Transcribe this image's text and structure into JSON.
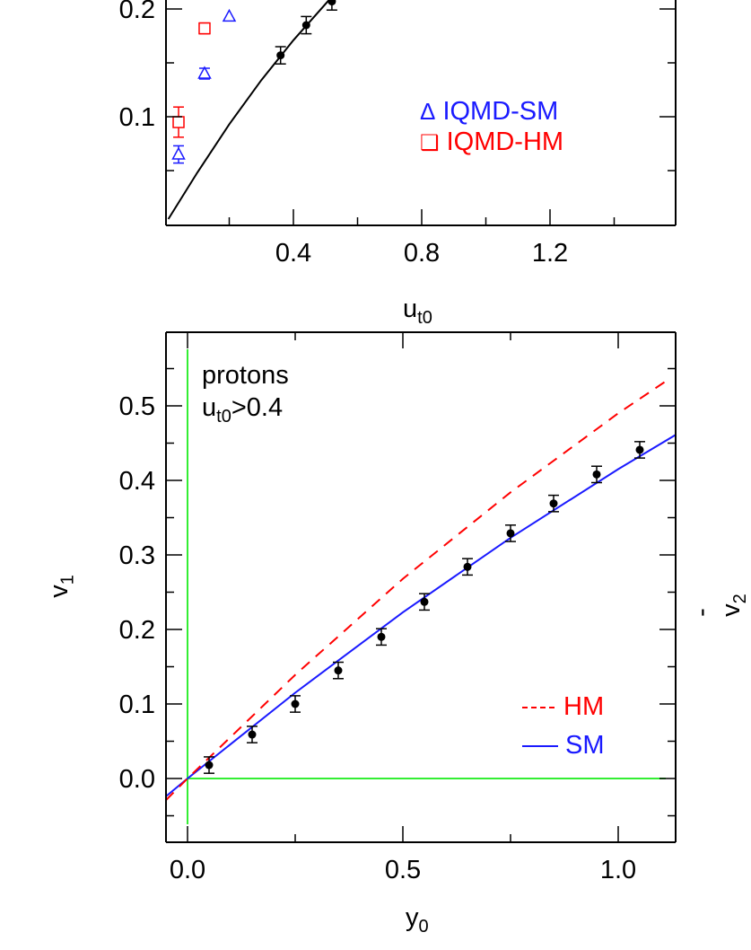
{
  "colors": {
    "sm": "#1a1aff",
    "hm": "#ff0000",
    "data": "#000000",
    "zero_lines": "#33ee33",
    "frame": "#000000"
  },
  "chart_data": [
    {
      "type": "scatter",
      "panel": "top",
      "title": "",
      "xlabel": "u",
      "xlabel_sub": "t0",
      "ylabel": "",
      "xlim": [
        0.0,
        1.59
      ],
      "ylim": [
        0.0,
        0.208
      ],
      "x_ticks": [
        "0.4",
        "0.8",
        "1.2"
      ],
      "y_ticks": [
        "0.1",
        "0.2"
      ],
      "legend": [
        {
          "symbol": "Δ",
          "label": "IQMD-SM",
          "color": "#1a1aff"
        },
        {
          "symbol": "❑",
          "label": "IQMD-HM",
          "color": "#ff0000"
        }
      ],
      "series": [
        {
          "name": "data",
          "marker": "filled-circle",
          "x": [
            0.36,
            0.44,
            0.52
          ],
          "y": [
            0.157,
            0.185,
            0.207
          ],
          "err": [
            0.008,
            0.008,
            0.008
          ]
        },
        {
          "name": "IQMD-SM",
          "marker": "open-triangle",
          "x": [
            0.042,
            0.123,
            0.2
          ],
          "y": [
            0.065,
            0.14,
            0.193
          ],
          "err": [
            0.008,
            0.005,
            0.0
          ]
        },
        {
          "name": "IQMD-HM",
          "marker": "open-square",
          "x": [
            0.042,
            0.123
          ],
          "y": [
            0.095,
            0.182
          ],
          "err": [
            0.014,
            0.005
          ]
        },
        {
          "name": "fit",
          "line": "solid",
          "x": [
            0.01,
            0.1,
            0.2,
            0.3,
            0.4,
            0.51
          ],
          "y": [
            0.005,
            0.048,
            0.093,
            0.134,
            0.171,
            0.208
          ]
        }
      ]
    },
    {
      "type": "scatter",
      "panel": "bottom",
      "title": "",
      "xlabel": "y",
      "xlabel_sub": "0",
      "ylabel": "v",
      "ylabel_sub": "1",
      "xlim": [
        -0.05,
        1.14
      ],
      "ylim": [
        -0.085,
        0.595
      ],
      "x_ticks": [
        "0.0",
        "0.5",
        "1.0"
      ],
      "y_ticks": [
        "0.0",
        "0.1",
        "0.2",
        "0.3",
        "0.4",
        "0.5"
      ],
      "annotation": {
        "line1": "protons",
        "line2_main": "u",
        "line2_sub": "t0",
        "line2_rest": ">0.4"
      },
      "legend": [
        {
          "style": "dashed",
          "label": "HM",
          "color": "#ff0000"
        },
        {
          "style": "solid",
          "label": "SM",
          "color": "#1a1aff"
        }
      ],
      "series": [
        {
          "name": "data",
          "marker": "filled-circle",
          "x": [
            0.05,
            0.15,
            0.25,
            0.35,
            0.45,
            0.55,
            0.65,
            0.75,
            0.85,
            0.95,
            1.05
          ],
          "y": [
            0.018,
            0.059,
            0.1,
            0.145,
            0.19,
            0.237,
            0.284,
            0.329,
            0.369,
            0.408,
            0.441
          ],
          "err": [
            0.011,
            0.011,
            0.011,
            0.011,
            0.011,
            0.011,
            0.011,
            0.011,
            0.011,
            0.011,
            0.011
          ]
        },
        {
          "name": "SM",
          "line": "solid",
          "x": [
            -0.05,
            0.0,
            0.25,
            0.5,
            0.75,
            1.0,
            1.133
          ],
          "y": [
            -0.024,
            0.0,
            0.115,
            0.223,
            0.323,
            0.415,
            0.461
          ]
        },
        {
          "name": "HM",
          "line": "dashed",
          "x": [
            -0.05,
            0.0,
            0.25,
            0.5,
            0.75,
            1.0,
            1.113
          ],
          "y": [
            -0.029,
            0.0,
            0.139,
            0.268,
            0.384,
            0.49,
            0.534
          ]
        }
      ]
    }
  ],
  "right_panel_label": {
    "main": "-v",
    "sub": "2"
  }
}
